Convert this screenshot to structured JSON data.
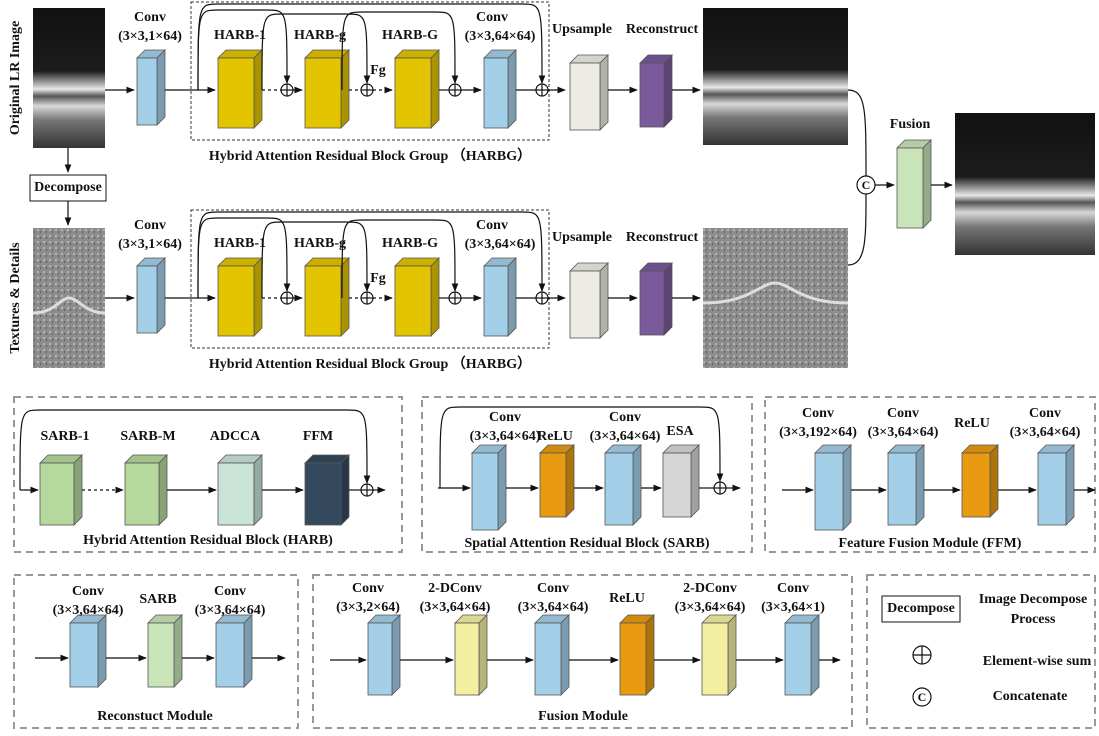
{
  "branches": [
    {
      "input_label": "Original LR Image",
      "conv1": {
        "name": "Conv",
        "spec": "(3×3,1×64)"
      },
      "harb": [
        "HARB-1",
        "HARB-g",
        "HARB-G"
      ],
      "fg": "Fg",
      "conv2": {
        "name": "Conv",
        "spec": "(3×3,64×64)"
      },
      "group_label": "Hybrid Attention Residual Block Group （HARBG）",
      "upsample": "Upsample",
      "reconstruct": "Reconstruct"
    },
    {
      "input_label": "Textures & Details",
      "conv1": {
        "name": "Conv",
        "spec": "(3×3,1×64)"
      },
      "harb": [
        "HARB-1",
        "HARB-g",
        "HARB-G"
      ],
      "fg": "Fg",
      "conv2": {
        "name": "Conv",
        "spec": "(3×3,64×64)"
      },
      "group_label": "Hybrid Attention Residual Block Group （HARBG）",
      "upsample": "Upsample",
      "reconstruct": "Reconstruct"
    }
  ],
  "decompose": "Decompose",
  "fusion": {
    "label": "Fusion",
    "concat_symbol": "C"
  },
  "modules": [
    {
      "caption": "Hybrid Attention Residual Block (HARB)",
      "blocks": [
        {
          "name": "SARB-1"
        },
        {
          "name": "SARB-M"
        },
        {
          "name": "ADCCA"
        },
        {
          "name": "FFM"
        }
      ]
    },
    {
      "caption": "Spatial Attention Residual Block (SARB)",
      "blocks": [
        {
          "name": "Conv",
          "spec": "(3×3,64×64)"
        },
        {
          "name": "ReLU"
        },
        {
          "name": "Conv",
          "spec": "(3×3,64×64)"
        },
        {
          "name": "ESA"
        }
      ]
    },
    {
      "caption": "Feature Fusion Module (FFM)",
      "blocks": [
        {
          "name": "Conv",
          "spec": "(3×3,192×64)"
        },
        {
          "name": "Conv",
          "spec": "(3×3,64×64)"
        },
        {
          "name": "ReLU"
        },
        {
          "name": "Conv",
          "spec": "(3×3,64×64)"
        }
      ]
    },
    {
      "caption": "Reconstuct Module",
      "blocks": [
        {
          "name": "Conv",
          "spec": "(3×3,64×64)"
        },
        {
          "name": "SARB"
        },
        {
          "name": "Conv",
          "spec": "(3×3,64×64)"
        }
      ]
    },
    {
      "caption": "Fusion Module",
      "blocks": [
        {
          "name": "Conv",
          "spec": "(3×3,2×64)"
        },
        {
          "name": "2-DConv",
          "spec": "(3×3,64×64)"
        },
        {
          "name": "Conv",
          "spec": "(3×3,64×64)"
        },
        {
          "name": "ReLU"
        },
        {
          "name": "2-DConv",
          "spec": "(3×3,64×64)"
        },
        {
          "name": "Conv",
          "spec": "(3×3,64×1)"
        }
      ]
    }
  ],
  "legend": {
    "decompose": "Decompose",
    "decompose_desc": [
      "Image Decompose",
      "Process"
    ],
    "sum": "Element-wise sum",
    "concat_symbol": "C",
    "concat": "Concatenate"
  }
}
